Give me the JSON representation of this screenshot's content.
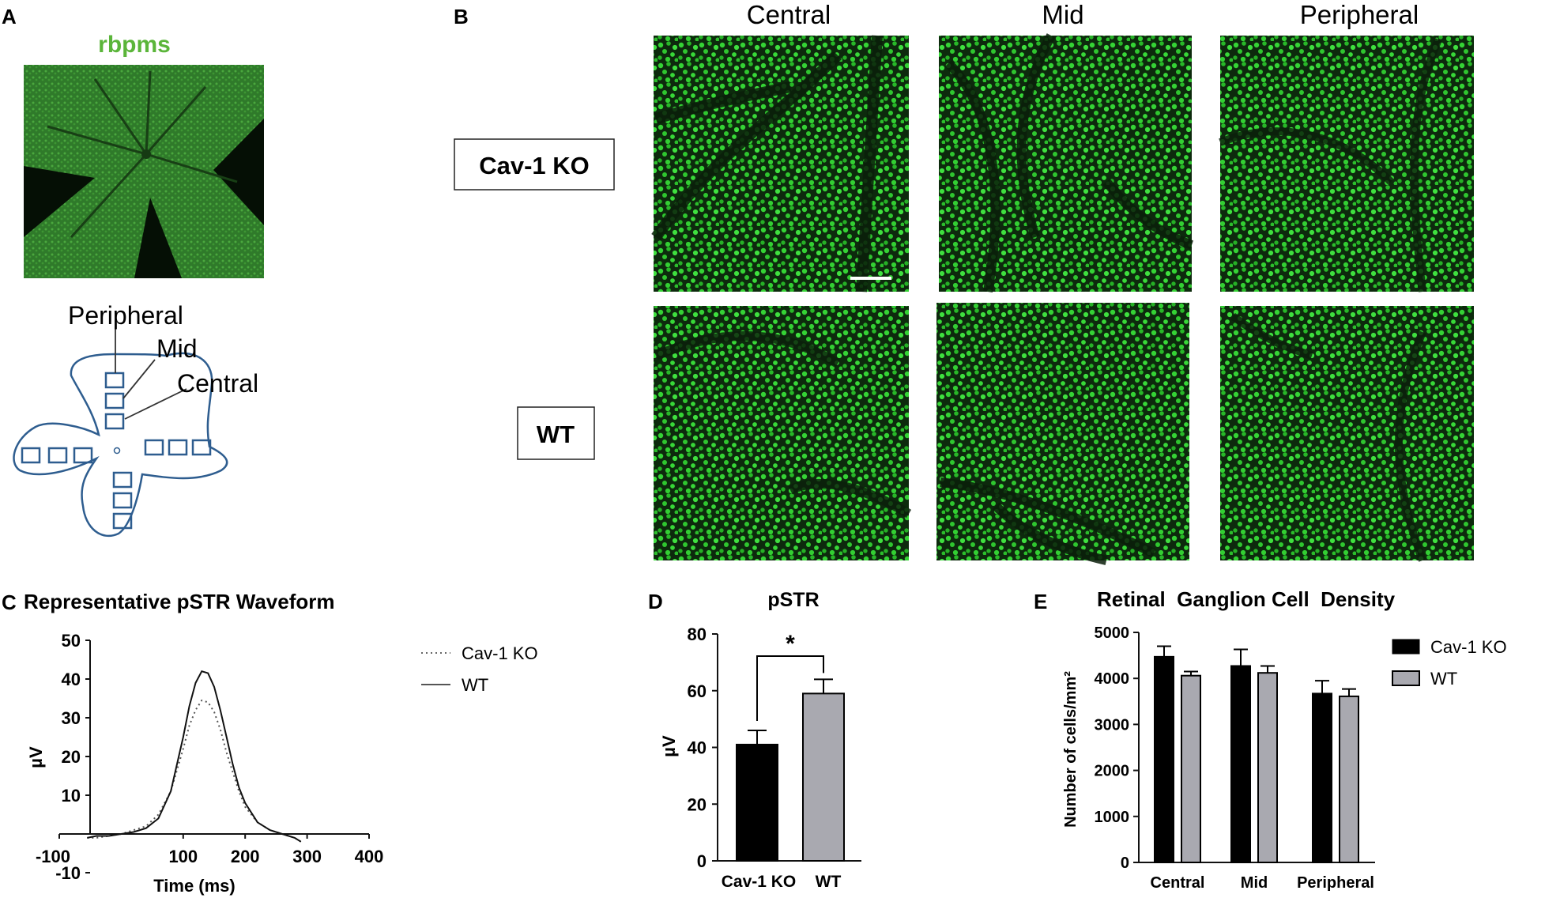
{
  "panels": {
    "a": {
      "letter": "A",
      "stain_label": "rbpms",
      "diagram_labels": {
        "peripheral": "Peripheral",
        "mid": "Mid",
        "central": "Central"
      }
    },
    "b": {
      "letter": "B",
      "columns": [
        "Central",
        "Mid",
        "Peripheral"
      ],
      "rows": [
        "Cav-1 KO",
        "WT"
      ]
    },
    "c": {
      "letter": "C",
      "title": "Representative pSTR Waveform"
    },
    "d": {
      "letter": "D",
      "title": "pSTR"
    },
    "e": {
      "letter": "E",
      "title": "Retinal  Ganglion Cell  Density"
    }
  },
  "colors": {
    "micrograph_green": "#2ecc2e",
    "diagram_blue": "#2e5d8f",
    "stain_label": "#5bb53a",
    "wt_bar": "#a9a9b0",
    "ko_bar": "#000000"
  },
  "chart_data": [
    {
      "id": "C",
      "type": "line",
      "title": "Representative pSTR Waveform",
      "xlabel": "Time (ms)",
      "ylabel": "µV",
      "xlim": [
        -100,
        400
      ],
      "ylim": [
        -10,
        50
      ],
      "xticks": [
        -100,
        100,
        200,
        300,
        400
      ],
      "yticks": [
        -10,
        10,
        20,
        30,
        40,
        50
      ],
      "legend_position": "right",
      "series": [
        {
          "name": "Cav-1 KO",
          "style": "dotted",
          "x": [
            -55,
            -40,
            -20,
            0,
            20,
            40,
            60,
            80,
            100,
            110,
            120,
            130,
            140,
            150,
            160,
            170,
            180,
            190,
            200,
            220,
            240,
            260,
            280,
            290
          ],
          "y": [
            -1,
            -1,
            -0.5,
            0,
            1,
            2,
            5,
            11,
            22,
            28,
            32,
            34.5,
            34,
            31.5,
            27,
            21,
            16,
            11,
            7,
            3,
            1,
            0,
            -1,
            -2
          ]
        },
        {
          "name": "WT",
          "style": "solid",
          "x": [
            -55,
            -40,
            -20,
            0,
            20,
            40,
            60,
            80,
            100,
            110,
            120,
            130,
            140,
            150,
            160,
            170,
            180,
            190,
            200,
            220,
            240,
            260,
            280,
            290
          ],
          "y": [
            -1,
            -0.5,
            -0.5,
            0,
            0.5,
            1.5,
            4,
            11,
            25,
            33,
            39,
            42,
            41.5,
            38,
            32,
            25,
            18,
            12,
            8,
            3,
            1,
            0,
            -1,
            -2
          ]
        }
      ]
    },
    {
      "id": "D",
      "type": "bar",
      "title": "pSTR",
      "ylabel": "µV",
      "ylim": [
        0,
        80
      ],
      "yticks": [
        0,
        20,
        40,
        60,
        80
      ],
      "categories": [
        "Cav-1 KO",
        "WT"
      ],
      "values": [
        41,
        59
      ],
      "errors": [
        5,
        5
      ],
      "significance": "*"
    },
    {
      "id": "E",
      "type": "bar",
      "title": "Retinal  Ganglion Cell  Density",
      "ylabel": "Number of cells/mm²",
      "ylim": [
        0,
        5000
      ],
      "yticks": [
        0,
        1000,
        2000,
        3000,
        4000,
        5000
      ],
      "categories": [
        "Central",
        "Mid",
        "Peripheral"
      ],
      "legend_position": "right",
      "series": [
        {
          "name": "Cav-1 KO",
          "values": [
            4470,
            4270,
            3670
          ],
          "errors": [
            230,
            360,
            280
          ]
        },
        {
          "name": "WT",
          "values": [
            4060,
            4120,
            3610
          ],
          "errors": [
            90,
            150,
            160
          ]
        }
      ]
    }
  ]
}
